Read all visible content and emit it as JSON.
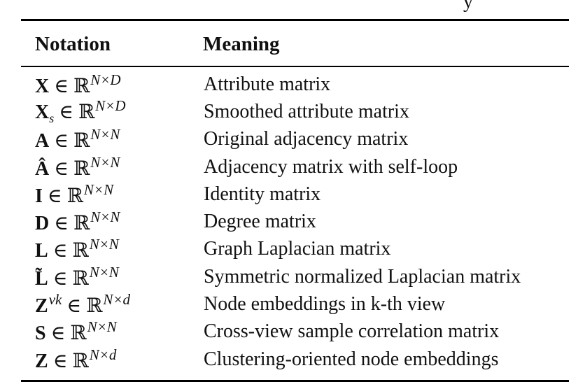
{
  "caption_fragment": "y",
  "headers": {
    "notation": "Notation",
    "meaning": "Meaning"
  },
  "rows": [
    {
      "sym": "X",
      "sub": "",
      "sup_sym": "",
      "rel": " ∈ ℝ",
      "dim": "N×D",
      "meaning": "Attribute matrix"
    },
    {
      "sym": "X",
      "sub": "s",
      "sup_sym": "",
      "rel": " ∈ ℝ",
      "dim": "N×D",
      "meaning": "Smoothed attribute matrix"
    },
    {
      "sym": "A",
      "sub": "",
      "sup_sym": "",
      "rel": " ∈ ℝ",
      "dim": "N×N",
      "meaning": "Original adjacency matrix"
    },
    {
      "sym": "Â",
      "sub": "",
      "sup_sym": "",
      "rel": " ∈ ℝ",
      "dim": "N×N",
      "meaning": "Adjacency matrix with self-loop"
    },
    {
      "sym": "I",
      "sub": "",
      "sup_sym": "",
      "rel": " ∈ ℝ",
      "dim": "N×N",
      "meaning": "Identity matrix"
    },
    {
      "sym": "D",
      "sub": "",
      "sup_sym": "",
      "rel": " ∈ ℝ",
      "dim": "N×N",
      "meaning": "Degree matrix"
    },
    {
      "sym": "L",
      "sub": "",
      "sup_sym": "",
      "rel": " ∈ ℝ",
      "dim": "N×N",
      "meaning": "Graph Laplacian matrix"
    },
    {
      "sym": "L̃",
      "sub": "",
      "sup_sym": "",
      "rel": " ∈ ℝ",
      "dim": "N×N",
      "meaning": "Symmetric normalized Laplacian matrix"
    },
    {
      "sym": "Z",
      "sub": "",
      "sup_sym": "vk",
      "rel": " ∈ ℝ",
      "dim": "N×d",
      "meaning": "Node embeddings in k-th view"
    },
    {
      "sym": "S",
      "sub": "",
      "sup_sym": "",
      "rel": " ∈ ℝ",
      "dim": "N×N",
      "meaning": "Cross-view sample correlation matrix"
    },
    {
      "sym": "Z",
      "sub": "",
      "sup_sym": "",
      "rel": " ∈ ℝ",
      "dim": "N×d",
      "meaning": "Clustering-oriented node embeddings"
    }
  ]
}
